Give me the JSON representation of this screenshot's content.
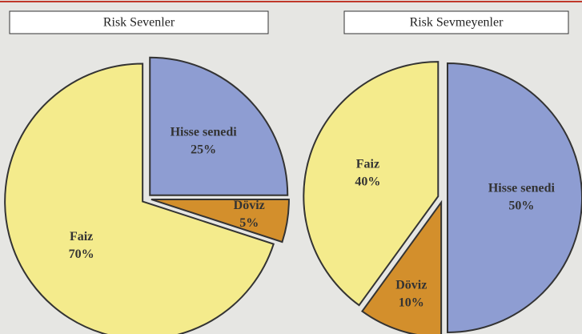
{
  "chart_data": [
    {
      "type": "pie",
      "title": "Risk Sevenler",
      "categories": [
        "Hisse senedi",
        "Döviz",
        "Faiz"
      ],
      "values": [
        25,
        5,
        70
      ],
      "value_labels": [
        "25%",
        "5%",
        "70%"
      ],
      "colors": [
        "#8e9dd2",
        "#d38f2c",
        "#f4eb8c"
      ]
    },
    {
      "type": "pie",
      "title": "Risk Sevmeyenler",
      "categories": [
        "Hisse senedi",
        "Döviz",
        "Faiz"
      ],
      "values": [
        50,
        10,
        40
      ],
      "value_labels": [
        "50%",
        "10%",
        "40%"
      ],
      "colors": [
        "#8e9dd2",
        "#d38f2c",
        "#f4eb8c"
      ]
    }
  ]
}
